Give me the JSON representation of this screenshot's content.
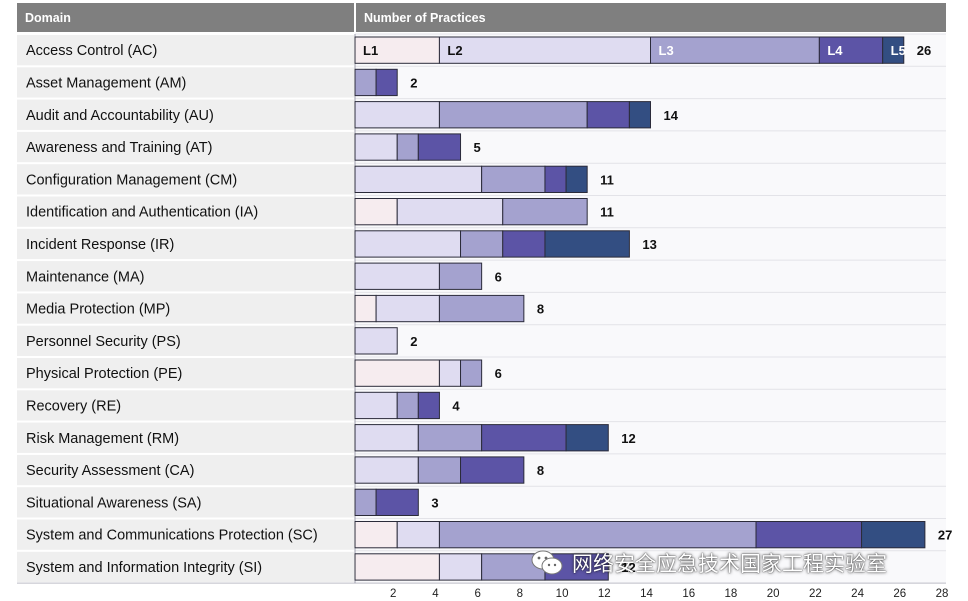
{
  "header": {
    "domain_label": "Domain",
    "practices_label": "Number of Practices"
  },
  "colors": {
    "L1": "#f6ecef",
    "L2": "#dfdcf1",
    "L3": "#a4a2cf",
    "L4": "#5c54a6",
    "L5": "#334e82",
    "header_bg": "#7f7f7f",
    "row_label_bg": "#efefef",
    "plot_bg": "#f9f9fb"
  },
  "chart_data": {
    "type": "bar",
    "stacked": true,
    "orientation": "horizontal",
    "xlim": [
      0,
      28
    ],
    "xticks": [
      2,
      4,
      6,
      8,
      10,
      12,
      14,
      16,
      18,
      20,
      22,
      24,
      26,
      28
    ],
    "series_names": [
      "L1",
      "L2",
      "L3",
      "L4",
      "L5"
    ],
    "level_labels": [
      "L1",
      "L2",
      "L3",
      "L4",
      "L5"
    ],
    "rows": [
      {
        "domain": "Access Control (AC)",
        "segments": [
          4,
          10,
          8,
          3,
          1
        ],
        "total": "26"
      },
      {
        "domain": "Asset Management (AM)",
        "segments": [
          0,
          0,
          1,
          1,
          0
        ],
        "total": "2"
      },
      {
        "domain": "Audit and Accountability (AU)",
        "segments": [
          0,
          4,
          7,
          2,
          1
        ],
        "total": "14"
      },
      {
        "domain": "Awareness and Training (AT)",
        "segments": [
          0,
          2,
          1,
          2,
          0
        ],
        "total": "5"
      },
      {
        "domain": "Configuration Management (CM)",
        "segments": [
          0,
          6,
          3,
          1,
          1
        ],
        "total": "11"
      },
      {
        "domain": "Identification and Authentication (IA)",
        "segments": [
          2,
          5,
          4,
          0,
          0
        ],
        "total": "11"
      },
      {
        "domain": "Incident Response (IR)",
        "segments": [
          0,
          5,
          2,
          2,
          4
        ],
        "total": "13"
      },
      {
        "domain": "Maintenance (MA)",
        "segments": [
          0,
          4,
          2,
          0,
          0
        ],
        "total": "6"
      },
      {
        "domain": "Media Protection (MP)",
        "segments": [
          1,
          3,
          4,
          0,
          0
        ],
        "total": "8"
      },
      {
        "domain": "Personnel Security (PS)",
        "segments": [
          0,
          2,
          0,
          0,
          0
        ],
        "total": "2"
      },
      {
        "domain": "Physical Protection (PE)",
        "segments": [
          4,
          1,
          1,
          0,
          0
        ],
        "total": "6"
      },
      {
        "domain": "Recovery (RE)",
        "segments": [
          0,
          2,
          1,
          1,
          0
        ],
        "total": "4"
      },
      {
        "domain": "Risk Management (RM)",
        "segments": [
          0,
          3,
          3,
          4,
          2
        ],
        "total": "12"
      },
      {
        "domain": "Security Assessment (CA)",
        "segments": [
          0,
          3,
          2,
          3,
          0
        ],
        "total": "8"
      },
      {
        "domain": "Situational Awareness (SA)",
        "segments": [
          0,
          0,
          1,
          2,
          0
        ],
        "total": "3"
      },
      {
        "domain": "System and Communications Protection (SC)",
        "segments": [
          2,
          2,
          15,
          5,
          3
        ],
        "total": "27"
      },
      {
        "domain": "System and Information Integrity (SI)",
        "segments": [
          4,
          2,
          3,
          3,
          0
        ],
        "total": "12"
      }
    ]
  },
  "watermark": {
    "text": "网络安全应急技术国家工程实验室",
    "icon": "wechat-icon"
  }
}
